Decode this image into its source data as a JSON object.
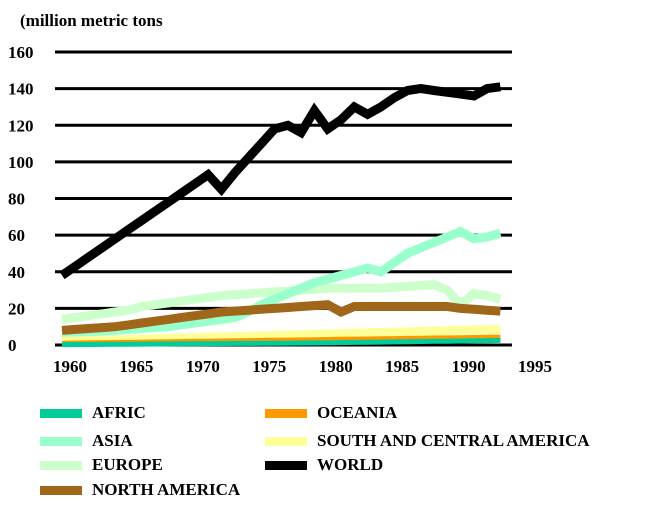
{
  "chart_data": {
    "type": "line",
    "unit_label": "(million metric tons",
    "xlabel": "",
    "ylabel": "",
    "ylim": [
      0,
      160
    ],
    "xlim": [
      1960,
      1995
    ],
    "y_ticks": [
      0,
      20,
      40,
      60,
      80,
      100,
      120,
      140,
      160
    ],
    "x_ticks": [
      1960,
      1965,
      1970,
      1975,
      1980,
      1985,
      1990,
      1995
    ],
    "grid": "horizontal",
    "legend_position": "bottom",
    "x": [
      1960,
      1961,
      1962,
      1963,
      1964,
      1965,
      1966,
      1967,
      1968,
      1969,
      1970,
      1971,
      1972,
      1973,
      1974,
      1975,
      1976,
      1977,
      1978,
      1979,
      1980,
      1981,
      1982,
      1983,
      1984,
      1985,
      1986,
      1987,
      1988,
      1989,
      1990,
      1991,
      1992,
      1993
    ],
    "series": [
      {
        "name": "WORLD",
        "color": "#000000",
        "values": [
          38,
          43,
          48,
          53,
          58,
          63,
          68,
          73,
          78,
          83,
          88,
          93,
          85,
          94,
          102,
          110,
          118,
          120,
          116,
          128,
          118,
          123,
          130,
          126,
          130,
          135,
          139,
          140,
          139,
          138,
          137,
          136,
          140,
          141
        ]
      },
      {
        "name": "ASIA",
        "color": "#99ffcc",
        "values": [
          6,
          6.5,
          7,
          7.5,
          8,
          8.5,
          9,
          9.5,
          10,
          11,
          12,
          13,
          14,
          15,
          18,
          22,
          25,
          28,
          31,
          34,
          36,
          38,
          40,
          42,
          40,
          45,
          50,
          53,
          56,
          59,
          62,
          58,
          59,
          61
        ]
      },
      {
        "name": "EUROPE",
        "color": "#ccffcc",
        "values": [
          14,
          15,
          16,
          17,
          18,
          19,
          21,
          22,
          23,
          24,
          25,
          26,
          27,
          27.5,
          28,
          28.5,
          29,
          29.5,
          30,
          30.5,
          31,
          31,
          31,
          31,
          31,
          31.5,
          32,
          32.5,
          33,
          30,
          22,
          28,
          27,
          25
        ]
      },
      {
        "name": "NORTH AMERICA",
        "color": "#a0661a",
        "values": [
          8,
          8.5,
          9,
          9.5,
          10,
          11,
          12,
          13,
          14,
          15,
          16,
          17,
          18,
          18.5,
          19,
          19.5,
          20,
          20.5,
          21,
          21.5,
          22,
          18,
          21,
          21,
          21,
          21,
          21,
          21,
          21,
          21,
          20,
          19.5,
          19,
          18.5
        ]
      },
      {
        "name": "SOUTH AND CENTRAL AMERICA",
        "color": "#ffff99",
        "values": [
          2,
          2.2,
          2.4,
          2.6,
          2.8,
          3,
          3.2,
          3.4,
          3.6,
          3.8,
          4,
          4.2,
          4.4,
          4.6,
          4.8,
          5,
          5.2,
          5.4,
          5.6,
          5.8,
          6,
          6.2,
          6.4,
          6.6,
          6.8,
          7,
          7.2,
          7.4,
          7.6,
          7.8,
          8,
          8.2,
          8.4,
          8.6
        ]
      },
      {
        "name": "OCEANIA",
        "color": "#ff9900",
        "values": [
          1,
          1.1,
          1.2,
          1.3,
          1.4,
          1.5,
          1.6,
          1.7,
          1.8,
          1.9,
          2,
          2.1,
          2.2,
          2.3,
          2.4,
          2.5,
          2.6,
          2.7,
          2.8,
          2.9,
          3,
          3.1,
          3.2,
          3.3,
          3.4,
          3.5,
          3.6,
          3.7,
          3.8,
          3.9,
          4,
          4.1,
          4.2,
          4.3
        ]
      },
      {
        "name": "AFRIC",
        "color": "#00cc99",
        "values": [
          0.2,
          0.25,
          0.3,
          0.35,
          0.4,
          0.45,
          0.5,
          0.55,
          0.6,
          0.65,
          0.7,
          0.75,
          0.8,
          0.85,
          0.9,
          0.95,
          1,
          1.05,
          1.1,
          1.15,
          1.2,
          1.3,
          1.4,
          1.5,
          1.6,
          1.7,
          1.8,
          1.9,
          2,
          2.1,
          2.2,
          2.3,
          2.4,
          2.5
        ]
      }
    ],
    "legend": [
      {
        "label": "AFRIC",
        "color": "#00cc99"
      },
      {
        "label": "ASIA",
        "color": "#99ffcc"
      },
      {
        "label": "EUROPE",
        "color": "#ccffcc"
      },
      {
        "label": "NORTH AMERICA",
        "color": "#a0661a"
      },
      {
        "label": "OCEANIA",
        "color": "#ff9900"
      },
      {
        "label": "SOUTH AND CENTRAL AMERICA",
        "color": "#ffff99"
      },
      {
        "label": "WORLD",
        "color": "#000000"
      }
    ]
  }
}
